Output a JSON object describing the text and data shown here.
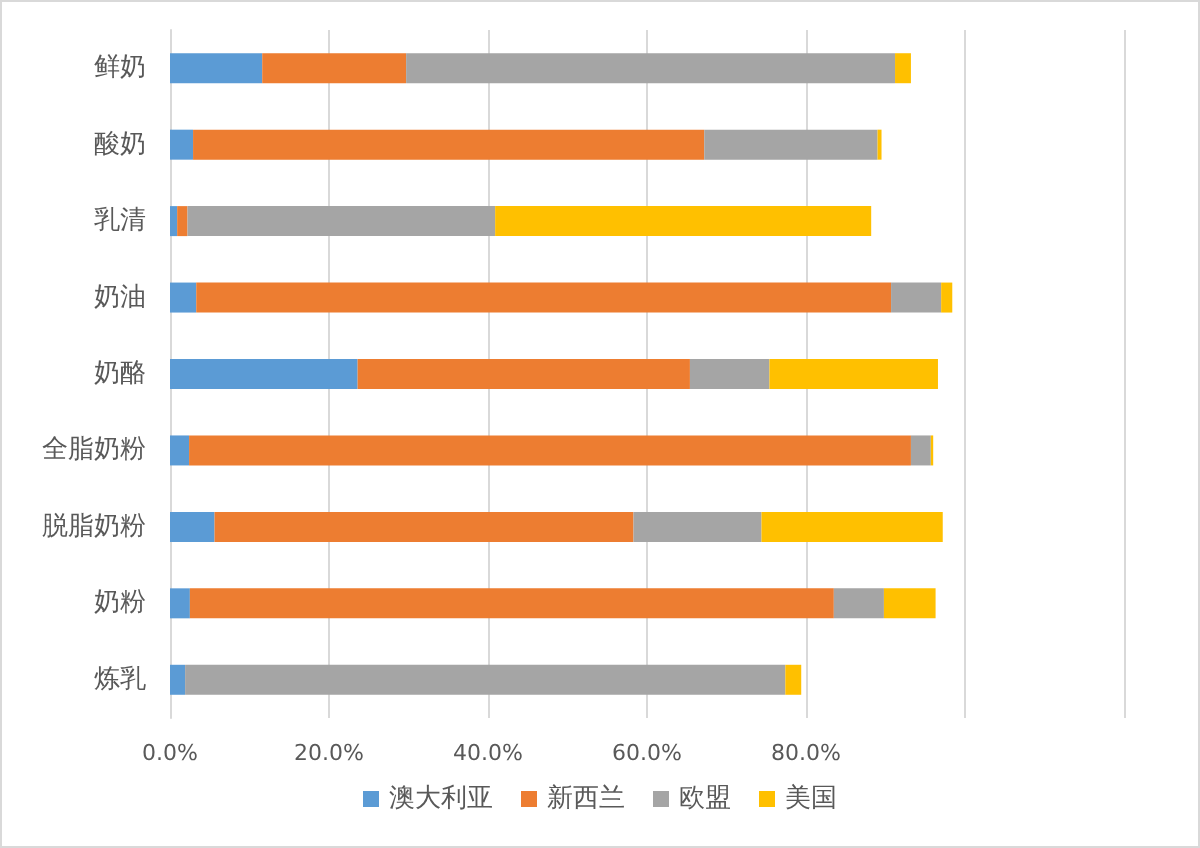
{
  "chart_data": {
    "type": "bar",
    "orientation": "horizontal",
    "stacked": true,
    "categories": [
      "鲜奶",
      "酸奶",
      "乳清",
      "奶油",
      "奶酪",
      "全脂奶粉",
      "脱脂奶粉",
      "奶粉",
      "炼乳"
    ],
    "series": [
      {
        "name": "澳大利亚",
        "color": "#5b9bd5",
        "values": [
          11.6,
          2.9,
          0.9,
          3.3,
          23.6,
          2.4,
          5.6,
          2.5,
          1.9
        ]
      },
      {
        "name": "新西兰",
        "color": "#ed7d31",
        "values": [
          18.1,
          64.3,
          1.3,
          87.4,
          41.8,
          90.8,
          52.7,
          81.0,
          0
        ]
      },
      {
        "name": "欧盟",
        "color": "#a5a5a5",
        "values": [
          61.5,
          21.8,
          38.7,
          6.3,
          10.0,
          2.5,
          16.1,
          6.3,
          75.5
        ]
      },
      {
        "name": "美国",
        "color": "#ffc000",
        "values": [
          2.0,
          0.5,
          47.3,
          1.4,
          21.2,
          0.3,
          22.8,
          6.5,
          2.0
        ]
      }
    ],
    "xlim": [
      0,
      120
    ],
    "xticks": [
      {
        "value": 0,
        "label": "0.0%"
      },
      {
        "value": 20,
        "label": "20.0%"
      },
      {
        "value": 40,
        "label": "40.0%"
      },
      {
        "value": 60,
        "label": "60.0%"
      },
      {
        "value": 80,
        "label": "80.0%"
      },
      {
        "value": 100,
        "label": null
      },
      {
        "value": 120,
        "label": null
      }
    ],
    "grid": "x",
    "legend": "bottom"
  }
}
